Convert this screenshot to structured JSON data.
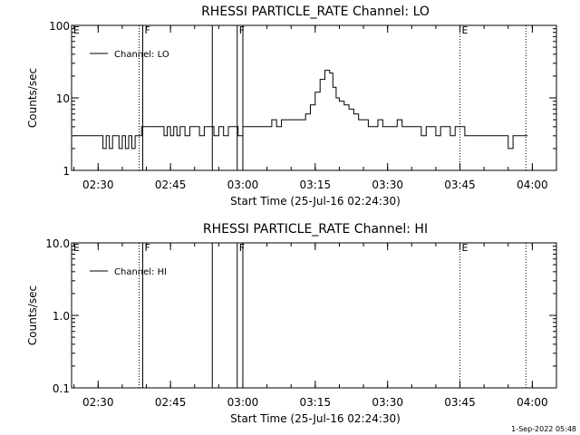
{
  "footer": {
    "timestamp": "1-Sep-2022 05:48"
  },
  "chart_data": [
    {
      "type": "line",
      "title": "RHESSI PARTICLE_RATE Channel: LO",
      "xlabel": "Start Time (25-Jul-16 02:24:30)",
      "ylabel": "Counts/sec",
      "yscale": "log",
      "xlim": [
        "02:24:30",
        "04:05:00"
      ],
      "ylim": [
        1,
        100
      ],
      "xticks": [
        "02:30",
        "02:45",
        "03:00",
        "03:15",
        "03:30",
        "03:45",
        "04:00"
      ],
      "yticks": [
        "1",
        "10",
        "100"
      ],
      "legend": {
        "position": "top-left",
        "entries": [
          "Channel: LO"
        ]
      },
      "markers": [
        {
          "time": "02:24:30",
          "label": "E",
          "style": "dotted"
        },
        {
          "time": "02:38:30",
          "label": "",
          "style": "dotted"
        },
        {
          "time": "02:39:15",
          "label": "F",
          "style": "solid"
        },
        {
          "time": "02:53:40",
          "label": "",
          "style": "solid"
        },
        {
          "time": "02:58:50",
          "label": "F",
          "style": "solid"
        },
        {
          "time": "03:00:00",
          "label": "",
          "style": "solid"
        },
        {
          "time": "03:45:00",
          "label": "E",
          "style": "dotted"
        },
        {
          "time": "03:58:40",
          "label": "",
          "style": "dotted"
        }
      ],
      "series": [
        {
          "name": "Channel: LO",
          "x": [
            "02:25:00",
            "02:27:00",
            "02:28:30",
            "02:30:00",
            "02:31:00",
            "02:31:40",
            "02:32:20",
            "02:33:00",
            "02:33:40",
            "02:34:20",
            "02:35:00",
            "02:35:40",
            "02:36:20",
            "02:37:00",
            "02:37:40",
            "02:38:20",
            "02:39:00",
            "02:40:00",
            "02:41:00",
            "02:42:00",
            "02:43:00",
            "02:43:40",
            "02:44:20",
            "02:45:00",
            "02:45:40",
            "02:46:20",
            "02:47:00",
            "02:48:00",
            "02:49:00",
            "02:50:00",
            "02:51:00",
            "02:52:00",
            "02:53:00",
            "02:54:00",
            "02:55:00",
            "02:56:00",
            "02:57:00",
            "02:58:00",
            "02:59:00",
            "03:00:00",
            "03:01:00",
            "03:02:00",
            "03:03:00",
            "03:04:00",
            "03:05:00",
            "03:06:00",
            "03:07:00",
            "03:08:00",
            "03:09:00",
            "03:10:00",
            "03:11:00",
            "03:12:00",
            "03:13:00",
            "03:14:00",
            "03:15:00",
            "03:16:00",
            "03:17:00",
            "03:18:00",
            "03:18:40",
            "03:19:20",
            "03:20:00",
            "03:21:00",
            "03:22:00",
            "03:23:00",
            "03:24:00",
            "03:25:00",
            "03:26:00",
            "03:27:00",
            "03:28:00",
            "03:29:00",
            "03:30:00",
            "03:31:00",
            "03:32:00",
            "03:33:00",
            "03:34:00",
            "03:35:00",
            "03:36:00",
            "03:37:00",
            "03:38:00",
            "03:39:00",
            "03:40:00",
            "03:41:00",
            "03:42:00",
            "03:43:00",
            "03:44:00",
            "03:45:00",
            "03:46:00",
            "03:47:00",
            "03:48:00",
            "03:49:00",
            "03:50:00",
            "03:51:00",
            "03:52:00",
            "03:53:00",
            "03:54:00",
            "03:55:00",
            "03:56:00",
            "03:57:00",
            "03:58:00",
            "03:59:00"
          ],
          "y": [
            3,
            3,
            3,
            3,
            2,
            3,
            2,
            3,
            3,
            2,
            3,
            2,
            3,
            2,
            3,
            3,
            4,
            4,
            4,
            4,
            4,
            3,
            4,
            3,
            4,
            3,
            4,
            3,
            4,
            4,
            3,
            4,
            4,
            3,
            4,
            3,
            4,
            4,
            3,
            4,
            4,
            4,
            4,
            4,
            4,
            5,
            4,
            5,
            5,
            5,
            5,
            5,
            6,
            8,
            12,
            18,
            24,
            22,
            14,
            10,
            9,
            8,
            7,
            6,
            5,
            5,
            4,
            4,
            5,
            4,
            4,
            4,
            5,
            4,
            4,
            4,
            4,
            3,
            4,
            4,
            3,
            4,
            4,
            3,
            4,
            4,
            3,
            3,
            3,
            3,
            3,
            3,
            3,
            3,
            3,
            2,
            3,
            3,
            3,
            3
          ]
        }
      ]
    },
    {
      "type": "line",
      "title": "RHESSI PARTICLE_RATE Channel: HI",
      "xlabel": "Start Time (25-Jul-16 02:24:30)",
      "ylabel": "Counts/sec",
      "yscale": "log",
      "xlim": [
        "02:24:30",
        "04:05:00"
      ],
      "ylim": [
        0.1,
        10.0
      ],
      "xticks": [
        "02:30",
        "02:45",
        "03:00",
        "03:15",
        "03:30",
        "03:45",
        "04:00"
      ],
      "yticks": [
        "0.1",
        "1.0",
        "10.0"
      ],
      "legend": {
        "position": "top-left",
        "entries": [
          "Channel: HI"
        ]
      },
      "markers": [
        {
          "time": "02:24:30",
          "label": "E",
          "style": "dotted"
        },
        {
          "time": "02:38:30",
          "label": "",
          "style": "dotted"
        },
        {
          "time": "02:39:15",
          "label": "F",
          "style": "solid"
        },
        {
          "time": "02:53:40",
          "label": "",
          "style": "solid"
        },
        {
          "time": "02:58:50",
          "label": "F",
          "style": "solid"
        },
        {
          "time": "03:00:00",
          "label": "",
          "style": "solid"
        },
        {
          "time": "03:45:00",
          "label": "E",
          "style": "dotted"
        },
        {
          "time": "03:58:40",
          "label": "",
          "style": "dotted"
        }
      ],
      "series": [
        {
          "name": "Channel: HI",
          "x": [],
          "y": []
        }
      ]
    }
  ]
}
